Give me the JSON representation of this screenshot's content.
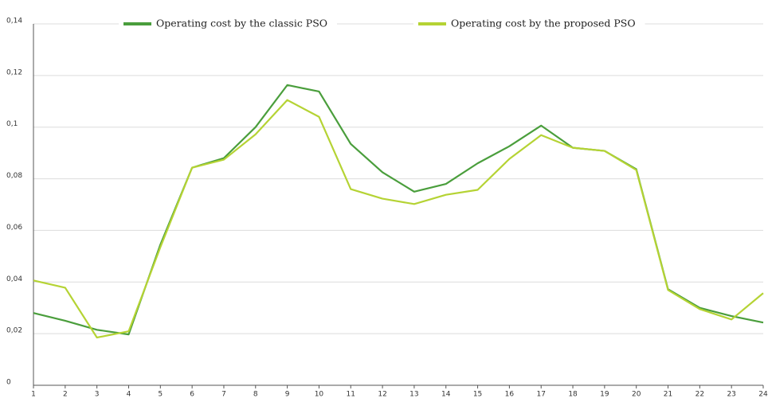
{
  "chart_data": {
    "type": "line",
    "x": [
      1,
      2,
      3,
      4,
      5,
      6,
      7,
      8,
      9,
      10,
      11,
      12,
      13,
      14,
      15,
      16,
      17,
      18,
      19,
      20,
      21,
      22,
      23,
      24
    ],
    "xlim": [
      1,
      24
    ],
    "xticks": [
      1,
      2,
      3,
      4,
      5,
      6,
      7,
      8,
      9,
      10,
      11,
      12,
      13,
      14,
      15,
      16,
      17,
      18,
      19,
      20,
      21,
      22,
      23,
      24
    ],
    "ylim": [
      0,
      0.14
    ],
    "yticks": [
      0,
      {
        "value": 0.02,
        "label": "0,02"
      },
      {
        "value": 0.04,
        "label": "0,04"
      },
      {
        "value": 0.06,
        "label": "0,06"
      },
      {
        "value": 0.08,
        "label": "0,08"
      },
      {
        "value": 0.1,
        "label": "0,1"
      },
      {
        "value": 0.12,
        "label": "0,12"
      },
      {
        "value": 0.14,
        "label": "0,14"
      }
    ],
    "grid": true,
    "legend": "top",
    "series": [
      {
        "name": "Operating cost by the classic PSO",
        "color": "#4a9e3c",
        "values": [
          0.028,
          0.025,
          0.0215,
          0.0197,
          0.0545,
          0.0843,
          0.088,
          0.1,
          0.1163,
          0.1138,
          0.0935,
          0.0825,
          0.075,
          0.078,
          0.086,
          0.0926,
          0.1006,
          0.092,
          0.0908,
          0.0837,
          0.0372,
          0.03,
          0.0268,
          0.0243
        ]
      },
      {
        "name": "Operating cost by the proposed PSO",
        "color": "#b5d334",
        "values": [
          0.0406,
          0.0378,
          0.0185,
          0.0209,
          0.0535,
          0.0843,
          0.0874,
          0.0972,
          0.1105,
          0.104,
          0.076,
          0.0723,
          0.0702,
          0.0738,
          0.0757,
          0.0877,
          0.0969,
          0.092,
          0.0908,
          0.0834,
          0.0369,
          0.0295,
          0.0255,
          0.0357
        ]
      }
    ]
  }
}
